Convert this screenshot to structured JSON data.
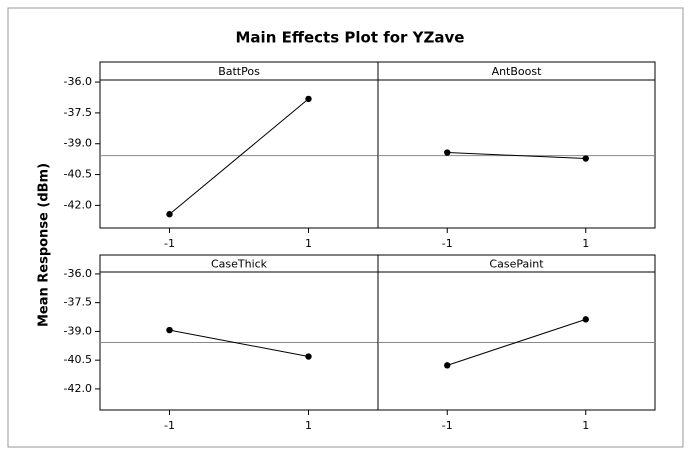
{
  "chart_data": {
    "type": "line",
    "title": "Main Effects Plot for YZave",
    "ylabel": "Mean Response (dBm)",
    "color": "#000000",
    "mean": -39.58,
    "ylim": [
      -43.1,
      -35.9
    ],
    "yticks": [
      {
        "value": -36,
        "label": "-36.0"
      },
      {
        "value": -37.5,
        "label": "-37.5"
      },
      {
        "value": -39,
        "label": "-39.0"
      },
      {
        "value": -40.5,
        "label": "-40.5"
      },
      {
        "value": -42,
        "label": "-42.0"
      }
    ],
    "xlim": [
      -2,
      2
    ],
    "xticks": [
      -1,
      1
    ],
    "panels": [
      {
        "name": "BattPos",
        "x": [
          -1,
          1
        ],
        "values": [
          -42.43,
          -36.82
        ]
      },
      {
        "name": "AntBoost",
        "x": [
          -1,
          1
        ],
        "values": [
          -39.43,
          -39.72
        ]
      },
      {
        "name": "CaseThick",
        "x": [
          -1,
          1
        ],
        "values": [
          -38.93,
          -40.31
        ]
      },
      {
        "name": "CasePaint",
        "x": [
          -1,
          1
        ],
        "values": [
          -40.77,
          -38.37
        ]
      }
    ]
  }
}
